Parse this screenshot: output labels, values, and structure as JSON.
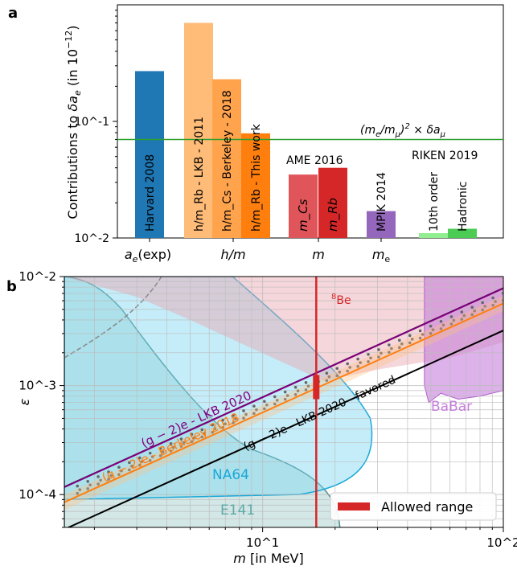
{
  "chart_data": [
    {
      "panel": "a",
      "panel_label": "a",
      "type": "bar",
      "yscale": "log",
      "ylim": [
        0.01,
        1.0
      ],
      "ylabel": "Contributions to δa_e (in 10^-12)",
      "yticks": [
        "10^-2",
        "10^-1"
      ],
      "xticks": [
        "a_e(exp)",
        "h/m",
        "m",
        "m_e"
      ],
      "bars": [
        {
          "label": "Harvard 2008",
          "value": 0.27,
          "color": "#1f77b4"
        },
        {
          "label": "h/m_Rb - LKB - 2011",
          "value": 0.7,
          "color": "#ffbb78"
        },
        {
          "label": "h/m_Cs - Berkeley - 2018",
          "value": 0.23,
          "color": "#ffa34d"
        },
        {
          "label": "h/m_Rb - This work",
          "value": 0.079,
          "color": "#ff7f0e"
        },
        {
          "label": "m_Cs",
          "value": 0.035,
          "color": "#e0555a"
        },
        {
          "label": "m_Rb",
          "value": 0.04,
          "color": "#d62728"
        },
        {
          "label": "MPIK 2014",
          "value": 0.017,
          "color": "#9467bd"
        },
        {
          "label": "10th order",
          "value": 0.011,
          "color": "#90ee90"
        },
        {
          "label": "Hadronic",
          "value": 0.012,
          "color": "#4dcc55"
        }
      ],
      "group_labels": [
        "AME 2016",
        "RIKEN 2019"
      ],
      "hline": {
        "value": 0.07,
        "label": "(m_e/m_μ)^2 × δa_μ",
        "color": "#2ca02c"
      }
    },
    {
      "panel": "b",
      "panel_label": "b",
      "type": "area",
      "xscale": "log",
      "yscale": "log",
      "xlim": [
        1.5,
        100
      ],
      "ylim": [
        5e-05,
        0.01
      ],
      "xlabel": "m [in MeV]",
      "ylabel": "ε",
      "xticks": [
        "10^1",
        "10^2"
      ],
      "yticks": [
        "10^-4",
        "10^-3",
        "10^-2"
      ],
      "grid": true,
      "regions": [
        {
          "name": "8Be",
          "color": "#d62728"
        },
        {
          "name": "BaBar",
          "color": "#c77ddb"
        },
        {
          "name": "NA64",
          "color": "#1aa8d8"
        },
        {
          "name": "E141",
          "color": "#5fa9a6"
        }
      ],
      "lines": [
        {
          "name": "(g − 2)e - LKB 2020",
          "eps_at_1_5MeV": 0.000117,
          "slope": 1,
          "color": "#800080"
        },
        {
          "name": "(g − 2)e - Berkeley 2018",
          "eps_at_1_5MeV": 8.5e-05,
          "slope": 1,
          "color": "#ff7f0e"
        },
        {
          "name": "(g − 2)e - LKB 2020 - favored",
          "eps_at_1_5MeV": 4.8e-05,
          "slope": 1,
          "color": "#000000"
        }
      ],
      "vline": {
        "x": 16.7,
        "label": "8Be",
        "color": "#d62728"
      },
      "allowed_range": {
        "x": 16.7,
        "eps": [
          0.00075,
          0.00125
        ],
        "color": "#d62728"
      },
      "legend": {
        "label": "Allowed range",
        "location": "lower-right"
      }
    }
  ]
}
